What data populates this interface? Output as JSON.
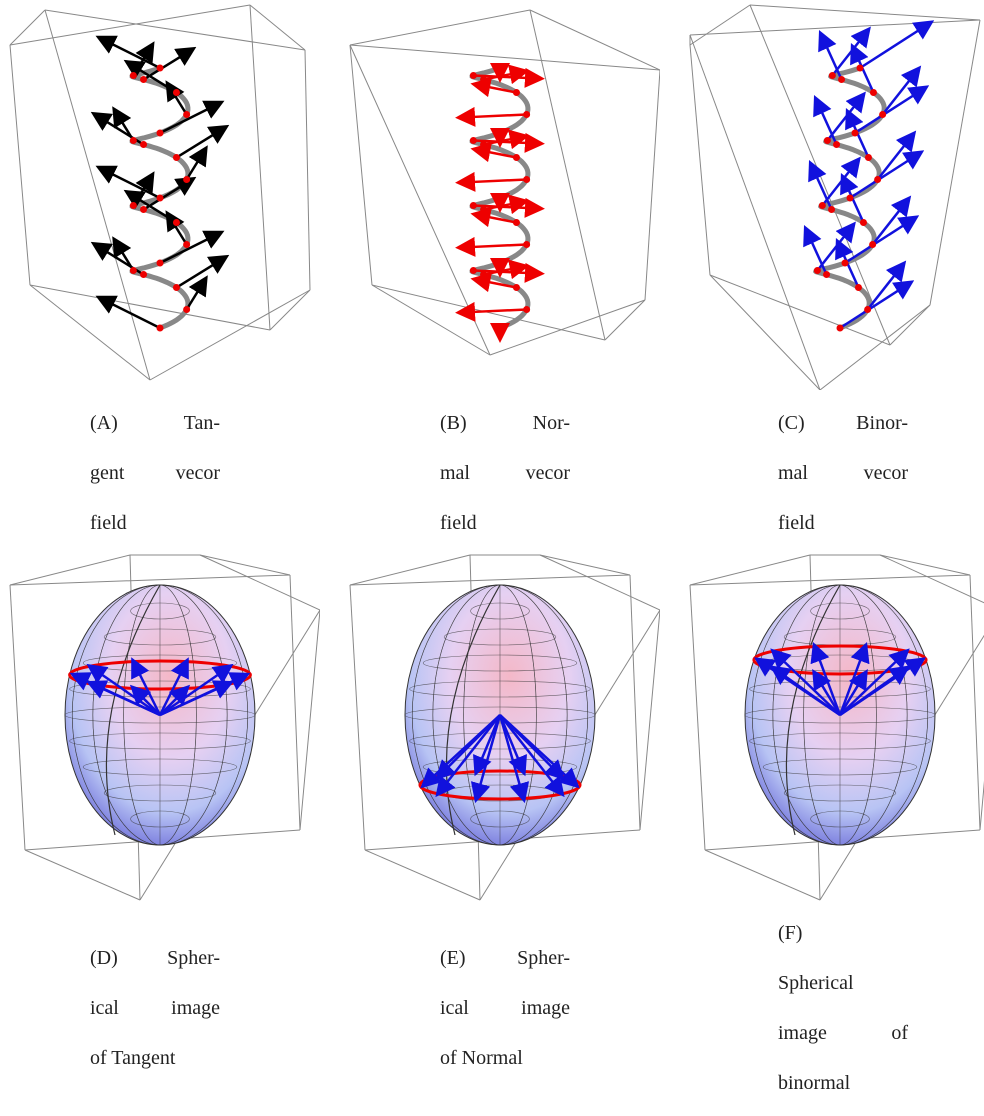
{
  "figures": [
    {
      "label": "(A)",
      "lines": [
        "Tan-",
        "gent vecor",
        "field"
      ]
    },
    {
      "label": "(B)",
      "lines": [
        "Nor-",
        "mal vecor",
        "field"
      ]
    },
    {
      "label": "(C)",
      "lines": [
        "Binor-",
        "mal vecor",
        "field"
      ]
    },
    {
      "label": "(D)",
      "lines": [
        "Spher-",
        "ical image",
        "of Tangent"
      ]
    },
    {
      "label": "(E)",
      "lines": [
        "Spher-",
        "ical image",
        "of Normal"
      ]
    },
    {
      "label": "(F)",
      "lines": [
        "Spherical",
        "image of",
        "binormal"
      ]
    }
  ]
}
